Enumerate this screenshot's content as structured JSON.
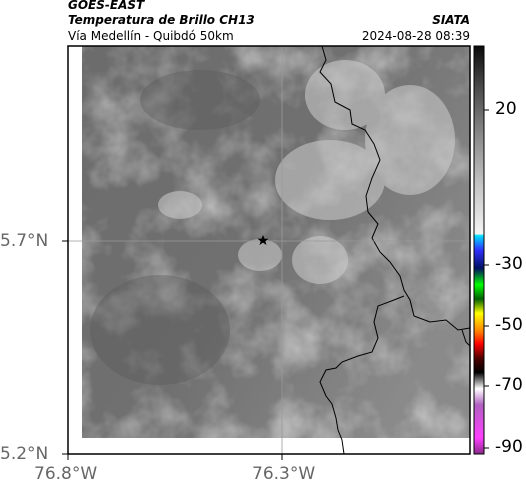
{
  "header": {
    "satellite": "GOES-EAST",
    "product": "Temperatura de Brillo CH13",
    "region": "Vía Medellín - Quibdó 50km",
    "org": "SIATA",
    "timestamp": "2024-08-28 08:39"
  },
  "map": {
    "lon_ticks": [
      "76.8°W",
      "76.3°W"
    ],
    "lat_ticks": [
      "5.7°N",
      "5.2°N"
    ],
    "marker": "star-icon"
  },
  "colorbar": {
    "ticks": [
      "20",
      "-30",
      "-50",
      "-70",
      "-90"
    ]
  }
}
